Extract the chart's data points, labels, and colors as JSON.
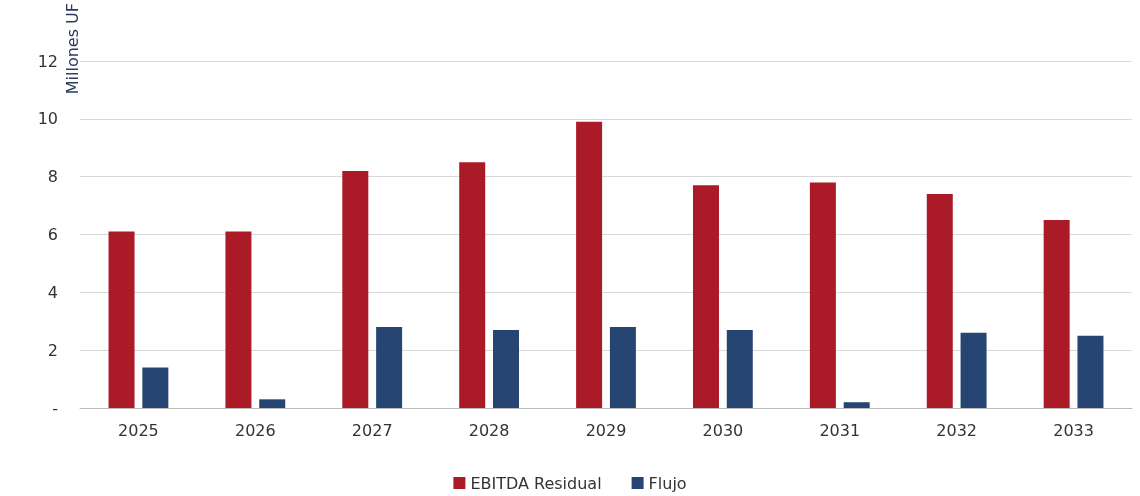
{
  "chart_data": {
    "type": "bar",
    "ylabel": "Millones UF",
    "categories": [
      "2025",
      "2026",
      "2027",
      "2028",
      "2029",
      "2030",
      "2031",
      "2032",
      "2033"
    ],
    "series": [
      {
        "name": "EBITDA Residual",
        "color": "#ab1a27",
        "values": [
          6.1,
          6.1,
          8.2,
          8.5,
          9.9,
          7.7,
          7.8,
          7.4,
          6.5
        ]
      },
      {
        "name": "Flujo",
        "color": "#264573",
        "values": [
          1.4,
          0.3,
          2.8,
          2.7,
          2.8,
          2.7,
          0.2,
          2.6,
          2.5
        ]
      }
    ],
    "ylim": [
      0,
      12
    ],
    "yticks": [
      {
        "value": 0,
        "label": "-"
      },
      2,
      4,
      6,
      8,
      10,
      12
    ],
    "grid": "y",
    "legend": "bottom"
  }
}
